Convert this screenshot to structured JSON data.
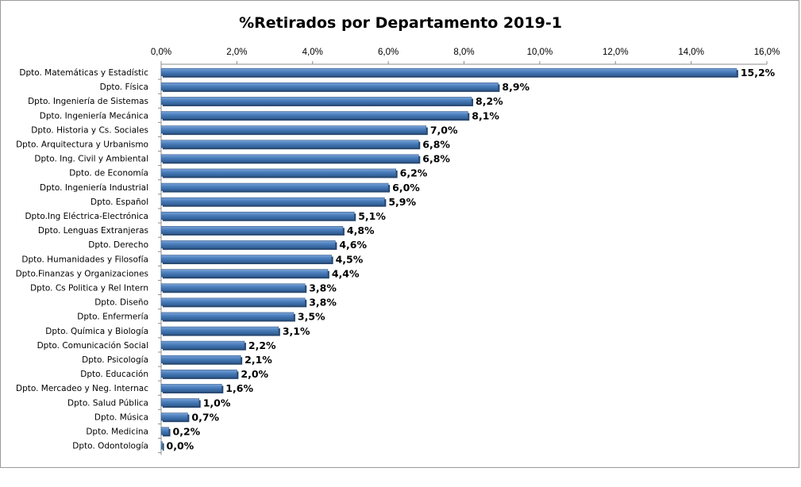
{
  "chart_data": {
    "type": "bar",
    "orientation": "horizontal",
    "title": "%Retirados por Departamento 2019-1",
    "xlabel": "",
    "ylabel": "",
    "xlim": [
      0,
      16
    ],
    "x_tick_labels": [
      "0,0%",
      "2,0%",
      "4,0%",
      "6,0%",
      "8,0%",
      "10,0%",
      "12,0%",
      "14,0%",
      "16,0%"
    ],
    "x_ticks": [
      0,
      2,
      4,
      6,
      8,
      10,
      12,
      14,
      16
    ],
    "axis_position": "top",
    "grid": false,
    "legend": "none",
    "bar_color": "#4a7ebb",
    "categories": [
      "Dpto. Matemáticas y Estadístic",
      "Dpto. Física",
      "Dpto. Ingeniería de Sistemas",
      "Dpto. Ingeniería Mecánica",
      "Dpto. Historia y Cs. Sociales",
      "Dpto. Arquitectura y Urbanismo",
      "Dpto. Ing. Civil y Ambiental",
      "Dpto. de Economía",
      "Dpto. Ingeniería Industrial",
      "Dpto. Español",
      "Dpto.Ing Eléctrica-Electrónica",
      "Dpto. Lenguas Extranjeras",
      "Dpto. Derecho",
      "Dpto. Humanidades y Filosofía",
      "Dpto.Finanzas y Organizaciones",
      "Dpto. Cs Politica y Rel Intern",
      "Dpto. Diseño",
      "Dpto. Enfermería",
      "Dpto. Química y Biología",
      "Dpto. Comunicación Social",
      "Dpto. Psicología",
      "Dpto. Educación",
      "Dpto. Mercadeo y Neg. Internac",
      "Dpto. Salud Pública",
      "Dpto. Música",
      "Dpto. Medicina",
      "Dpto. Odontología"
    ],
    "values": [
      15.2,
      8.9,
      8.2,
      8.1,
      7.0,
      6.8,
      6.8,
      6.2,
      6.0,
      5.9,
      5.1,
      4.8,
      4.6,
      4.5,
      4.4,
      3.8,
      3.8,
      3.5,
      3.1,
      2.2,
      2.1,
      2.0,
      1.6,
      1.0,
      0.7,
      0.2,
      0.0
    ],
    "data_labels": [
      "15,2%",
      "8,9%",
      "8,2%",
      "8,1%",
      "7,0%",
      "6,8%",
      "6,8%",
      "6,2%",
      "6,0%",
      "5,9%",
      "5,1%",
      "4,8%",
      "4,6%",
      "4,5%",
      "4,4%",
      "3,8%",
      "3,8%",
      "3,5%",
      "3,1%",
      "2,2%",
      "2,1%",
      "2,0%",
      "1,6%",
      "1,0%",
      "0,7%",
      "0,2%",
      "0,0%"
    ]
  }
}
